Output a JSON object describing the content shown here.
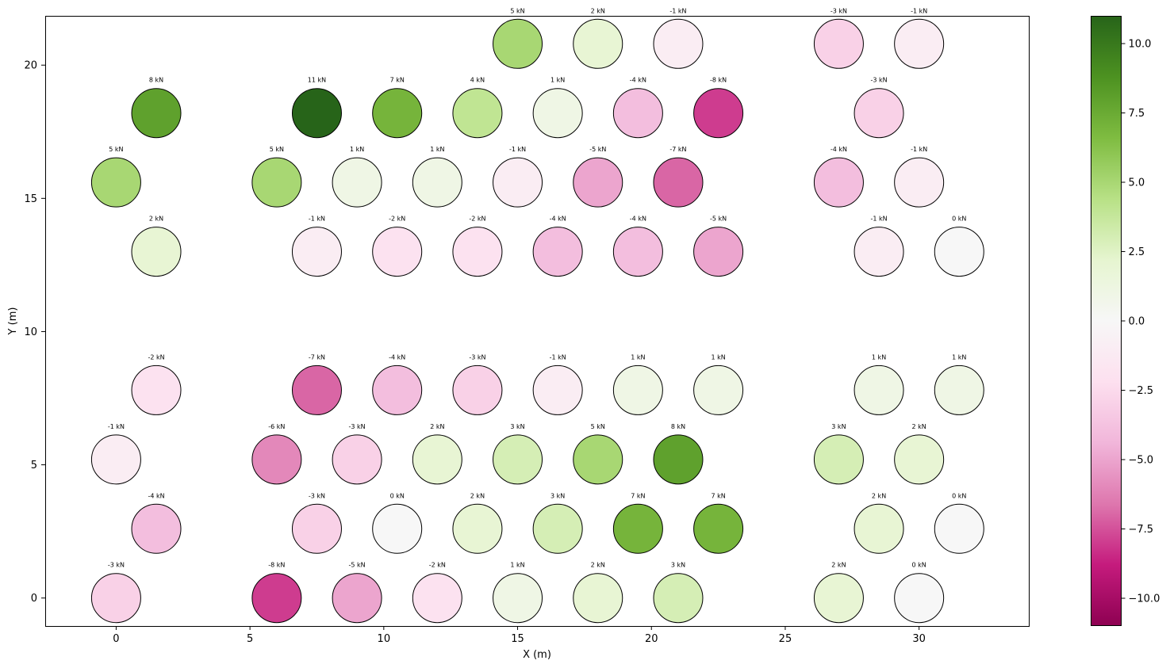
{
  "chart_data": {
    "type": "scatter",
    "encoding": "bubble-color",
    "title": "",
    "xlabel": "X (m)",
    "ylabel": "Y (m)",
    "xlim": [
      -2.65,
      34.1
    ],
    "ylim": [
      -1.05,
      21.85
    ],
    "x_ticks": [
      0,
      5,
      10,
      15,
      20,
      25,
      30
    ],
    "y_ticks": [
      0,
      5,
      10,
      15,
      20
    ],
    "colormap": "PiYG",
    "color_range": [
      -11,
      11
    ],
    "colorbar_ticks": [
      "10.0",
      "7.5",
      "5.0",
      "2.5",
      "0.0",
      "−2.5",
      "−5.0",
      "−7.5",
      "−10.0"
    ],
    "colorbar_tick_values": [
      10,
      7.5,
      5,
      2.5,
      0,
      -2.5,
      -5,
      -7.5,
      -10
    ],
    "label_unit": "kN",
    "grid": false,
    "points": [
      {
        "x": 15,
        "y": 20.8,
        "v": 5
      },
      {
        "x": 18,
        "y": 20.8,
        "v": 2
      },
      {
        "x": 21,
        "y": 20.8,
        "v": -1
      },
      {
        "x": 27,
        "y": 20.8,
        "v": -3
      },
      {
        "x": 30,
        "y": 20.8,
        "v": -1
      },
      {
        "x": 1.5,
        "y": 18.2,
        "v": 8
      },
      {
        "x": 7.5,
        "y": 18.2,
        "v": 11
      },
      {
        "x": 10.5,
        "y": 18.2,
        "v": 7
      },
      {
        "x": 13.5,
        "y": 18.2,
        "v": 4
      },
      {
        "x": 16.5,
        "y": 18.2,
        "v": 1
      },
      {
        "x": 19.5,
        "y": 18.2,
        "v": -4
      },
      {
        "x": 22.5,
        "y": 18.2,
        "v": -8
      },
      {
        "x": 28.5,
        "y": 18.2,
        "v": -3
      },
      {
        "x": 0,
        "y": 15.6,
        "v": 5
      },
      {
        "x": 6,
        "y": 15.6,
        "v": 5
      },
      {
        "x": 9,
        "y": 15.6,
        "v": 1
      },
      {
        "x": 12,
        "y": 15.6,
        "v": 1
      },
      {
        "x": 15,
        "y": 15.6,
        "v": -1
      },
      {
        "x": 18,
        "y": 15.6,
        "v": -5
      },
      {
        "x": 21,
        "y": 15.6,
        "v": -7
      },
      {
        "x": 27,
        "y": 15.6,
        "v": -4
      },
      {
        "x": 30,
        "y": 15.6,
        "v": -1
      },
      {
        "x": 1.5,
        "y": 13.0,
        "v": 2
      },
      {
        "x": 7.5,
        "y": 13.0,
        "v": -1
      },
      {
        "x": 10.5,
        "y": 13.0,
        "v": -2
      },
      {
        "x": 13.5,
        "y": 13.0,
        "v": -2
      },
      {
        "x": 16.5,
        "y": 13.0,
        "v": -4
      },
      {
        "x": 19.5,
        "y": 13.0,
        "v": -4
      },
      {
        "x": 22.5,
        "y": 13.0,
        "v": -5
      },
      {
        "x": 28.5,
        "y": 13.0,
        "v": -1
      },
      {
        "x": 31.5,
        "y": 13.0,
        "v": 0
      },
      {
        "x": 1.5,
        "y": 7.8,
        "v": -2
      },
      {
        "x": 7.5,
        "y": 7.8,
        "v": -7
      },
      {
        "x": 10.5,
        "y": 7.8,
        "v": -4
      },
      {
        "x": 13.5,
        "y": 7.8,
        "v": -3
      },
      {
        "x": 16.5,
        "y": 7.8,
        "v": -1
      },
      {
        "x": 19.5,
        "y": 7.8,
        "v": 1
      },
      {
        "x": 22.5,
        "y": 7.8,
        "v": 1
      },
      {
        "x": 28.5,
        "y": 7.8,
        "v": 1
      },
      {
        "x": 31.5,
        "y": 7.8,
        "v": 1
      },
      {
        "x": 0,
        "y": 5.2,
        "v": -1
      },
      {
        "x": 6,
        "y": 5.2,
        "v": -6
      },
      {
        "x": 9,
        "y": 5.2,
        "v": -3
      },
      {
        "x": 12,
        "y": 5.2,
        "v": 2
      },
      {
        "x": 15,
        "y": 5.2,
        "v": 3
      },
      {
        "x": 18,
        "y": 5.2,
        "v": 5
      },
      {
        "x": 21,
        "y": 5.2,
        "v": 8
      },
      {
        "x": 27,
        "y": 5.2,
        "v": 3
      },
      {
        "x": 30,
        "y": 5.2,
        "v": 2
      },
      {
        "x": 1.5,
        "y": 2.6,
        "v": -4
      },
      {
        "x": 7.5,
        "y": 2.6,
        "v": -3
      },
      {
        "x": 10.5,
        "y": 2.6,
        "v": 0
      },
      {
        "x": 13.5,
        "y": 2.6,
        "v": 2
      },
      {
        "x": 16.5,
        "y": 2.6,
        "v": 3
      },
      {
        "x": 19.5,
        "y": 2.6,
        "v": 7
      },
      {
        "x": 22.5,
        "y": 2.6,
        "v": 7
      },
      {
        "x": 28.5,
        "y": 2.6,
        "v": 2
      },
      {
        "x": 31.5,
        "y": 2.6,
        "v": 0
      },
      {
        "x": 0,
        "y": 0,
        "v": -3
      },
      {
        "x": 6,
        "y": 0,
        "v": -8
      },
      {
        "x": 9,
        "y": 0,
        "v": -5
      },
      {
        "x": 12,
        "y": 0,
        "v": -2
      },
      {
        "x": 15,
        "y": 0,
        "v": 1
      },
      {
        "x": 18,
        "y": 0,
        "v": 2
      },
      {
        "x": 21,
        "y": 0,
        "v": 3
      },
      {
        "x": 27,
        "y": 0,
        "v": 2
      },
      {
        "x": 30,
        "y": 0,
        "v": 0
      }
    ]
  }
}
